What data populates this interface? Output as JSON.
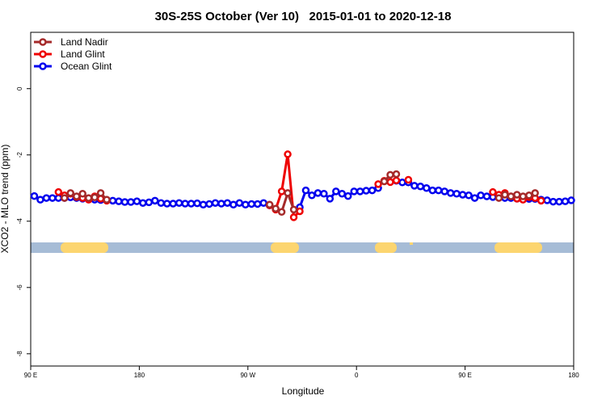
{
  "chart_data": {
    "type": "line",
    "title": "30S-25S October (Ver 10)   2015-01-01 to 2020-12-18",
    "xlabel": "Longitude",
    "ylabel": "XCO2 - MLO trend (ppm)",
    "legend": "top-left",
    "xlim": [
      90,
      540
    ],
    "ylim": [
      -8.37,
      1.7
    ],
    "xticks": [
      {
        "value": 90,
        "label": "90 E"
      },
      180,
      {
        "value": 270,
        "label": "90 W"
      },
      {
        "value": 360,
        "label": "0"
      },
      {
        "value": 450,
        "label": "90 E"
      },
      {
        "value": 540,
        "label": "180"
      }
    ],
    "yticks": [
      0,
      -2,
      -4,
      -6,
      -8
    ],
    "x": [
      93,
      98,
      103,
      108,
      113,
      118,
      123,
      128,
      133,
      138,
      143,
      148,
      153,
      158,
      163,
      168,
      173,
      178,
      183,
      188,
      193,
      198,
      203,
      208,
      213,
      218,
      223,
      228,
      233,
      238,
      243,
      248,
      253,
      258,
      263,
      268,
      273,
      278,
      283,
      288,
      293,
      298,
      303,
      308,
      313,
      318,
      323,
      328,
      333,
      338,
      343,
      348,
      353,
      358,
      363,
      368,
      373,
      378,
      383,
      388,
      393,
      398,
      403,
      408,
      413,
      418,
      423,
      428,
      433,
      438,
      443,
      448,
      453,
      458,
      463,
      468,
      473,
      478,
      483,
      488,
      493,
      498,
      503,
      508,
      513,
      518,
      523,
      528,
      533,
      538
    ],
    "series": [
      {
        "name": "Land Nadir",
        "color": "#a52a2a",
        "values": [
          null,
          null,
          null,
          null,
          null,
          -3.3,
          -3.15,
          -3.25,
          -3.17,
          -3.3,
          -3.28,
          -3.15,
          -3.35,
          null,
          null,
          null,
          null,
          null,
          null,
          null,
          null,
          null,
          null,
          null,
          null,
          null,
          null,
          null,
          null,
          null,
          null,
          null,
          null,
          null,
          null,
          null,
          null,
          null,
          null,
          -3.5,
          -3.62,
          -3.72,
          -3.15,
          -3.65,
          null,
          null,
          null,
          null,
          null,
          null,
          null,
          null,
          null,
          null,
          null,
          null,
          null,
          null,
          -2.8,
          -2.6,
          -2.58,
          null,
          null,
          null,
          null,
          null,
          null,
          null,
          null,
          null,
          null,
          null,
          null,
          null,
          null,
          null,
          null,
          -3.3,
          -3.2,
          -3.25,
          -3.2,
          -3.25,
          -3.22,
          -3.15,
          null,
          null,
          null,
          null,
          null,
          null
        ]
      },
      {
        "name": "Land Glint",
        "color": "#ee0000",
        "values": [
          null,
          null,
          null,
          null,
          -3.12,
          -3.22,
          -3.17,
          -3.27,
          -3.3,
          -3.35,
          -3.25,
          -3.32,
          -3.38,
          null,
          null,
          null,
          null,
          null,
          null,
          null,
          null,
          null,
          null,
          null,
          null,
          null,
          null,
          null,
          null,
          null,
          null,
          null,
          null,
          null,
          null,
          null,
          null,
          null,
          null,
          -3.52,
          -3.65,
          -3.1,
          -1.98,
          -3.88,
          -3.7,
          null,
          null,
          null,
          null,
          null,
          null,
          null,
          null,
          null,
          null,
          null,
          null,
          -2.88,
          -2.78,
          -2.82,
          -2.77,
          null,
          -2.75,
          null,
          null,
          null,
          null,
          null,
          null,
          null,
          null,
          null,
          null,
          null,
          null,
          null,
          -3.12,
          -3.2,
          -3.15,
          -3.25,
          -3.32,
          -3.35,
          -3.27,
          -3.3,
          -3.38,
          null,
          null,
          null,
          null,
          null
        ]
      },
      {
        "name": "Ocean Glint",
        "color": "#0000ee",
        "values": [
          -3.24,
          -3.35,
          -3.3,
          -3.3,
          -3.3,
          -3.3,
          -3.28,
          -3.3,
          -3.32,
          -3.33,
          -3.35,
          -3.36,
          -3.37,
          -3.38,
          -3.4,
          -3.42,
          -3.42,
          -3.4,
          -3.45,
          -3.43,
          -3.38,
          -3.45,
          -3.47,
          -3.47,
          -3.45,
          -3.47,
          -3.47,
          -3.46,
          -3.5,
          -3.48,
          -3.45,
          -3.47,
          -3.45,
          -3.5,
          -3.45,
          -3.5,
          -3.48,
          -3.48,
          -3.45,
          -3.52,
          null,
          null,
          null,
          null,
          -3.58,
          -3.07,
          -3.22,
          -3.15,
          -3.17,
          -3.32,
          -3.1,
          -3.17,
          -3.24,
          -3.1,
          -3.1,
          -3.08,
          -3.07,
          -3.0,
          null,
          null,
          -2.78,
          -2.83,
          -2.83,
          -2.93,
          -2.95,
          -3.0,
          -3.07,
          -3.07,
          -3.1,
          -3.15,
          -3.17,
          -3.2,
          -3.22,
          -3.3,
          -3.22,
          -3.25,
          -3.27,
          -3.28,
          -3.3,
          -3.3,
          -3.32,
          -3.32,
          -3.33,
          -3.33,
          -3.35,
          -3.37,
          -3.41,
          -3.41,
          -3.4,
          -3.37
        ]
      }
    ]
  }
}
